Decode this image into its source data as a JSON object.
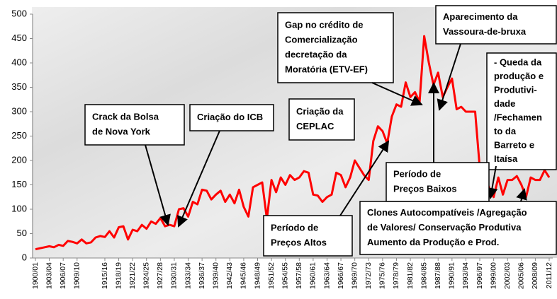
{
  "chart_data": {
    "type": "line",
    "categories": [
      "1900/01",
      null,
      null,
      "1903/04",
      null,
      null,
      "1906/07",
      null,
      null,
      "1909/10",
      null,
      null,
      null,
      null,
      null,
      "1915/16",
      null,
      null,
      "1918/19",
      null,
      null,
      "1921/22",
      null,
      null,
      "1924/25",
      null,
      null,
      "1927/28",
      null,
      null,
      "1930/31",
      null,
      null,
      "1933/34",
      null,
      null,
      "1936/37",
      null,
      null,
      "1939/40",
      null,
      null,
      "1942/43",
      null,
      null,
      "1945/46",
      null,
      null,
      "1948/49",
      null,
      null,
      "1951/52",
      null,
      null,
      "1954/55",
      null,
      null,
      "1957/58",
      null,
      null,
      "1960/61",
      null,
      null,
      "1963/64",
      null,
      null,
      "1966/67",
      null,
      null,
      "1969/70",
      null,
      null,
      "1972/73",
      null,
      null,
      "1975/76",
      null,
      null,
      "1978/79",
      null,
      null,
      "1981/82",
      null,
      null,
      "1984/85",
      null,
      null,
      "1987/88",
      null,
      null,
      "1990/91",
      null,
      null,
      "1993/94",
      null,
      null,
      "1996/97",
      null,
      null,
      "1999/00",
      null,
      null,
      "2002/03",
      null,
      null,
      "2005/06",
      null,
      null,
      "2008/09",
      null,
      null,
      "2011/12"
    ],
    "series": [
      {
        "color": "#ff0000",
        "values": [
          18,
          20,
          22,
          24,
          22,
          27,
          25,
          35,
          33,
          30,
          38,
          30,
          32,
          42,
          45,
          43,
          55,
          42,
          63,
          65,
          38,
          58,
          55,
          68,
          60,
          75,
          70,
          82,
          65,
          68,
          65,
          100,
          102,
          85,
          115,
          110,
          140,
          138,
          120,
          130,
          138,
          115,
          130,
          112,
          140,
          105,
          85,
          145,
          150,
          155,
          80,
          160,
          135,
          165,
          150,
          170,
          160,
          165,
          178,
          175,
          130,
          128,
          115,
          125,
          130,
          175,
          170,
          145,
          165,
          200,
          185,
          170,
          160,
          240,
          270,
          260,
          235,
          290,
          315,
          310,
          360,
          330,
          340,
          320,
          455,
          400,
          355,
          380,
          330,
          350,
          368,
          305,
          310,
          300,
          300,
          300,
          185,
          165,
          145,
          125,
          165,
          130,
          160,
          160,
          168,
          150,
          125,
          165,
          160,
          160,
          180,
          165
        ]
      }
    ],
    "ylim": [
      0,
      500
    ],
    "yticks": [
      0,
      50,
      100,
      150,
      200,
      250,
      300,
      350,
      400,
      450,
      500
    ],
    "annotations": [
      {
        "lines": [
          "Crack da Bolsa",
          "de Nova York"
        ]
      },
      {
        "lines": [
          "Criação do ICB"
        ]
      },
      {
        "lines": [
          "Criação da",
          "CEPLAC"
        ]
      },
      {
        "lines": [
          "Gap no crédito de",
          "Comercialização",
          "decretação da",
          "Moratória (ETV-EF)"
        ]
      },
      {
        "lines": [
          "Aparecimento da",
          "Vassoura-de-bruxa"
        ]
      },
      {
        "lines": [
          "- Queda da",
          "produção e",
          "Produtivi-",
          "dade",
          "/Fechamen",
          "to da",
          "Barreto e",
          "Itaísa"
        ]
      },
      {
        "lines": [
          "Período de",
          "Preços Baixos"
        ]
      },
      {
        "lines": [
          "Clones Autocompatíveis /Agregação",
          "de Valores/ Conservação Produtiva",
          "Aumento da Produção e Prod."
        ]
      },
      {
        "lines": [
          "Período de",
          "Preços Altos"
        ]
      }
    ]
  }
}
